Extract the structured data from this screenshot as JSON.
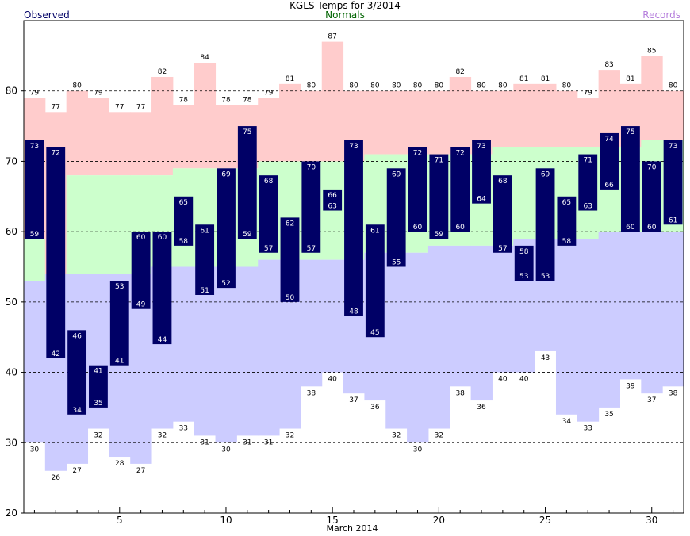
{
  "chart_data": {
    "type": "bar",
    "title": "KGLS Temps for 3/2014",
    "xlabel": "March 2014",
    "ylabel": "",
    "legend": {
      "observed": "Observed",
      "normals": "Normals",
      "records": "Records"
    },
    "ylim": [
      20,
      90
    ],
    "yticks": [
      20,
      30,
      40,
      50,
      60,
      70,
      80
    ],
    "xticks": [
      5,
      10,
      15,
      20,
      25,
      30
    ],
    "grid": "dashed horizontal at 30, 40, 50, 60, 70, 80",
    "days": [
      1,
      2,
      3,
      4,
      5,
      6,
      7,
      8,
      9,
      10,
      11,
      12,
      13,
      14,
      15,
      16,
      17,
      18,
      19,
      20,
      21,
      22,
      23,
      24,
      25,
      26,
      27,
      28,
      29,
      30,
      31
    ],
    "record_high": [
      79,
      77,
      80,
      79,
      77,
      77,
      82,
      78,
      84,
      78,
      78,
      79,
      81,
      80,
      87,
      80,
      80,
      80,
      80,
      80,
      82,
      80,
      80,
      81,
      81,
      80,
      79,
      83,
      81,
      85,
      80
    ],
    "record_low": [
      30,
      26,
      27,
      32,
      28,
      27,
      32,
      33,
      31,
      30,
      31,
      31,
      32,
      38,
      40,
      37,
      36,
      32,
      30,
      32,
      38,
      36,
      40,
      40,
      43,
      34,
      33,
      35,
      39,
      37,
      38
    ],
    "normal_high": [
      59,
      54,
      68,
      68,
      68,
      68,
      68,
      69,
      69,
      69,
      69,
      70,
      70,
      70,
      70,
      70,
      71,
      71,
      71,
      71,
      71,
      71,
      72,
      72,
      72,
      72,
      72,
      72,
      72,
      73,
      73
    ],
    "normal_low": [
      53,
      54,
      54,
      54,
      54,
      54,
      55,
      55,
      55,
      55,
      55,
      56,
      56,
      56,
      56,
      56,
      57,
      57,
      57,
      58,
      58,
      58,
      58,
      59,
      59,
      59,
      59,
      60,
      60,
      60,
      60
    ],
    "observed_high": [
      73,
      72,
      46,
      41,
      53,
      60,
      60,
      65,
      61,
      69,
      75,
      68,
      62,
      70,
      66,
      73,
      61,
      69,
      72,
      71,
      72,
      73,
      68,
      58,
      69,
      65,
      71,
      74,
      75,
      70,
      73
    ],
    "observed_low": [
      59,
      42,
      34,
      35,
      41,
      49,
      44,
      58,
      51,
      52,
      59,
      57,
      50,
      57,
      63,
      48,
      45,
      55,
      60,
      59,
      60,
      64,
      57,
      53,
      53,
      58,
      63,
      66,
      60,
      60,
      61
    ],
    "colors": {
      "record_band": "#ffcccc",
      "normal_band": "#ccffcc",
      "low_band": "#ccccff",
      "observed_bar": "#000066",
      "observed_text": "#ffffff",
      "observed_legend": "#000066",
      "normals_legend": "#006400",
      "records_legend": "#b57edc"
    }
  }
}
